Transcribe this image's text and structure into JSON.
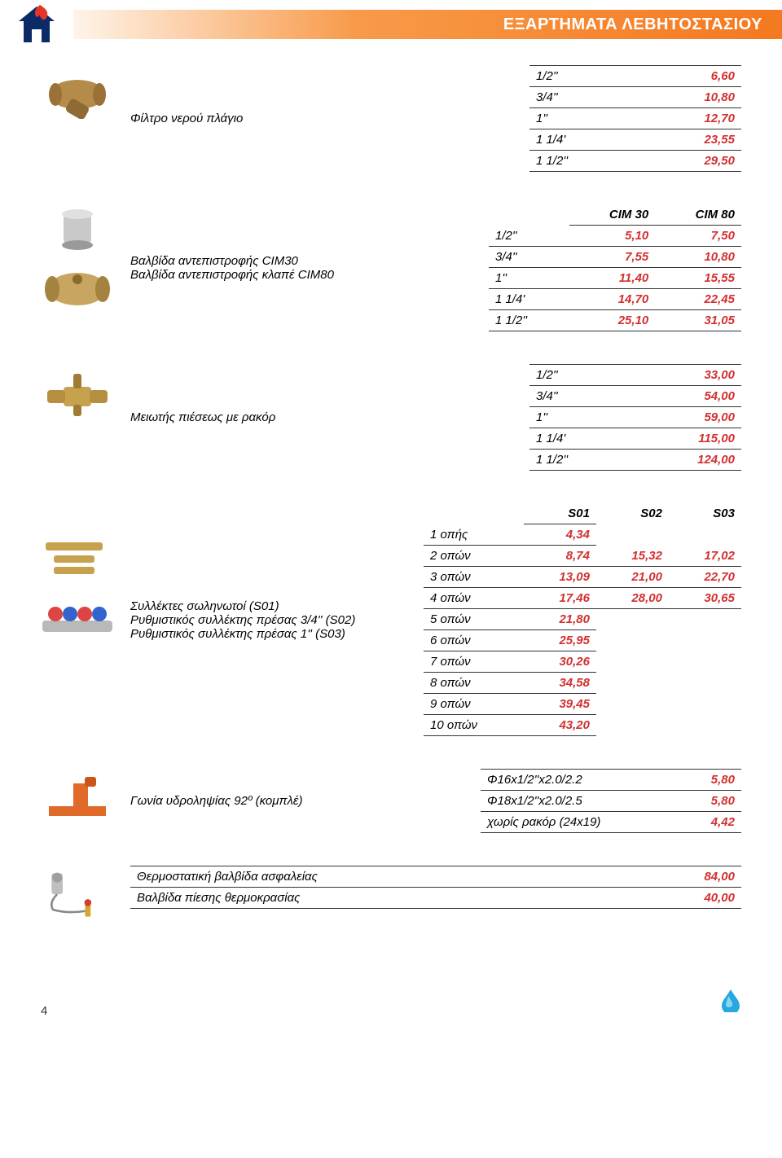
{
  "banner_title": "ΕΞΑΡΤΗΜΑΤΑ ΛΕΒΗΤΟΣΤΑΣΙΟΥ",
  "colors": {
    "value_color": "#d32f2f",
    "banner_gradient_start": "#fef4ea",
    "banner_gradient_mid": "#f89a49",
    "banner_gradient_end": "#f47920",
    "border": "#333333",
    "drop_icon": "#26a7de"
  },
  "table1": {
    "desc": "Φίλτρο νερού πλάγιο",
    "rows": [
      {
        "size": "1/2''",
        "val": "6,60"
      },
      {
        "size": "3/4''",
        "val": "10,80"
      },
      {
        "size": "1''",
        "val": "12,70"
      },
      {
        "size": "1 1/4'",
        "val": "23,55"
      },
      {
        "size": "1 1/2''",
        "val": "29,50"
      }
    ]
  },
  "table2": {
    "desc1": "Βαλβίδα αντεπιστροφής CIM30",
    "desc2": "Βαλβίδα αντεπιστροφής κλαπέ CIM80",
    "h1": "CIM 30",
    "h2": "CIM 80",
    "rows": [
      {
        "size": "1/2''",
        "v1": "5,10",
        "v2": "7,50"
      },
      {
        "size": "3/4''",
        "v1": "7,55",
        "v2": "10,80"
      },
      {
        "size": "1''",
        "v1": "11,40",
        "v2": "15,55"
      },
      {
        "size": "1 1/4'",
        "v1": "14,70",
        "v2": "22,45"
      },
      {
        "size": "1 1/2''",
        "v1": "25,10",
        "v2": "31,05"
      }
    ]
  },
  "table3": {
    "desc": "Μειωτής πιέσεως με ρακόρ",
    "rows": [
      {
        "size": "1/2''",
        "val": "33,00"
      },
      {
        "size": "3/4''",
        "val": "54,00"
      },
      {
        "size": "1''",
        "val": "59,00"
      },
      {
        "size": "1 1/4'",
        "val": "115,00"
      },
      {
        "size": "1 1/2''",
        "val": "124,00"
      }
    ]
  },
  "table4": {
    "desc1": "Συλλέκτες σωληνωτοί (S01)",
    "desc2": "Ρυθμιστικός συλλέκτης πρέσας 3/4'' (S02)",
    "desc3": "Ρυθμιστικός συλλέκτης πρέσας 1'' (S03)",
    "h1": "S01",
    "h2": "S02",
    "h3": "S03",
    "rows": [
      {
        "label": "1 οπής",
        "s1": "4,34",
        "s2": "",
        "s3": ""
      },
      {
        "label": "2 οπών",
        "s1": "8,74",
        "s2": "15,32",
        "s3": "17,02"
      },
      {
        "label": "3 οπών",
        "s1": "13,09",
        "s2": "21,00",
        "s3": "22,70"
      },
      {
        "label": "4 οπών",
        "s1": "17,46",
        "s2": "28,00",
        "s3": "30,65"
      },
      {
        "label": "5 οπών",
        "s1": "21,80",
        "s2": "",
        "s3": ""
      },
      {
        "label": "6 οπών",
        "s1": "25,95",
        "s2": "",
        "s3": ""
      },
      {
        "label": "7 οπών",
        "s1": "30,26",
        "s2": "",
        "s3": ""
      },
      {
        "label": "8 οπών",
        "s1": "34,58",
        "s2": "",
        "s3": ""
      },
      {
        "label": "9 οπών",
        "s1": "39,45",
        "s2": "",
        "s3": ""
      },
      {
        "label": "10 οπών",
        "s1": "43,20",
        "s2": "",
        "s3": ""
      }
    ]
  },
  "table5": {
    "desc": "Γωνία υδροληψίας 92º (κομπλέ)",
    "rows": [
      {
        "label": "Φ16x1/2''x2.0/2.2",
        "val": "5,80"
      },
      {
        "label": "Φ18x1/2''x2.0/2.5",
        "val": "5,80"
      },
      {
        "label": "χωρίς ρακόρ (24x19)",
        "val": "4,42"
      }
    ]
  },
  "table6": {
    "rows": [
      {
        "label": "Θερμοστατική βαλβίδα ασφαλείας",
        "val": "84,00"
      },
      {
        "label": "Βαλβίδα πίεσης θερμοκρασίας",
        "val": "40,00"
      }
    ]
  },
  "page_number": "4"
}
